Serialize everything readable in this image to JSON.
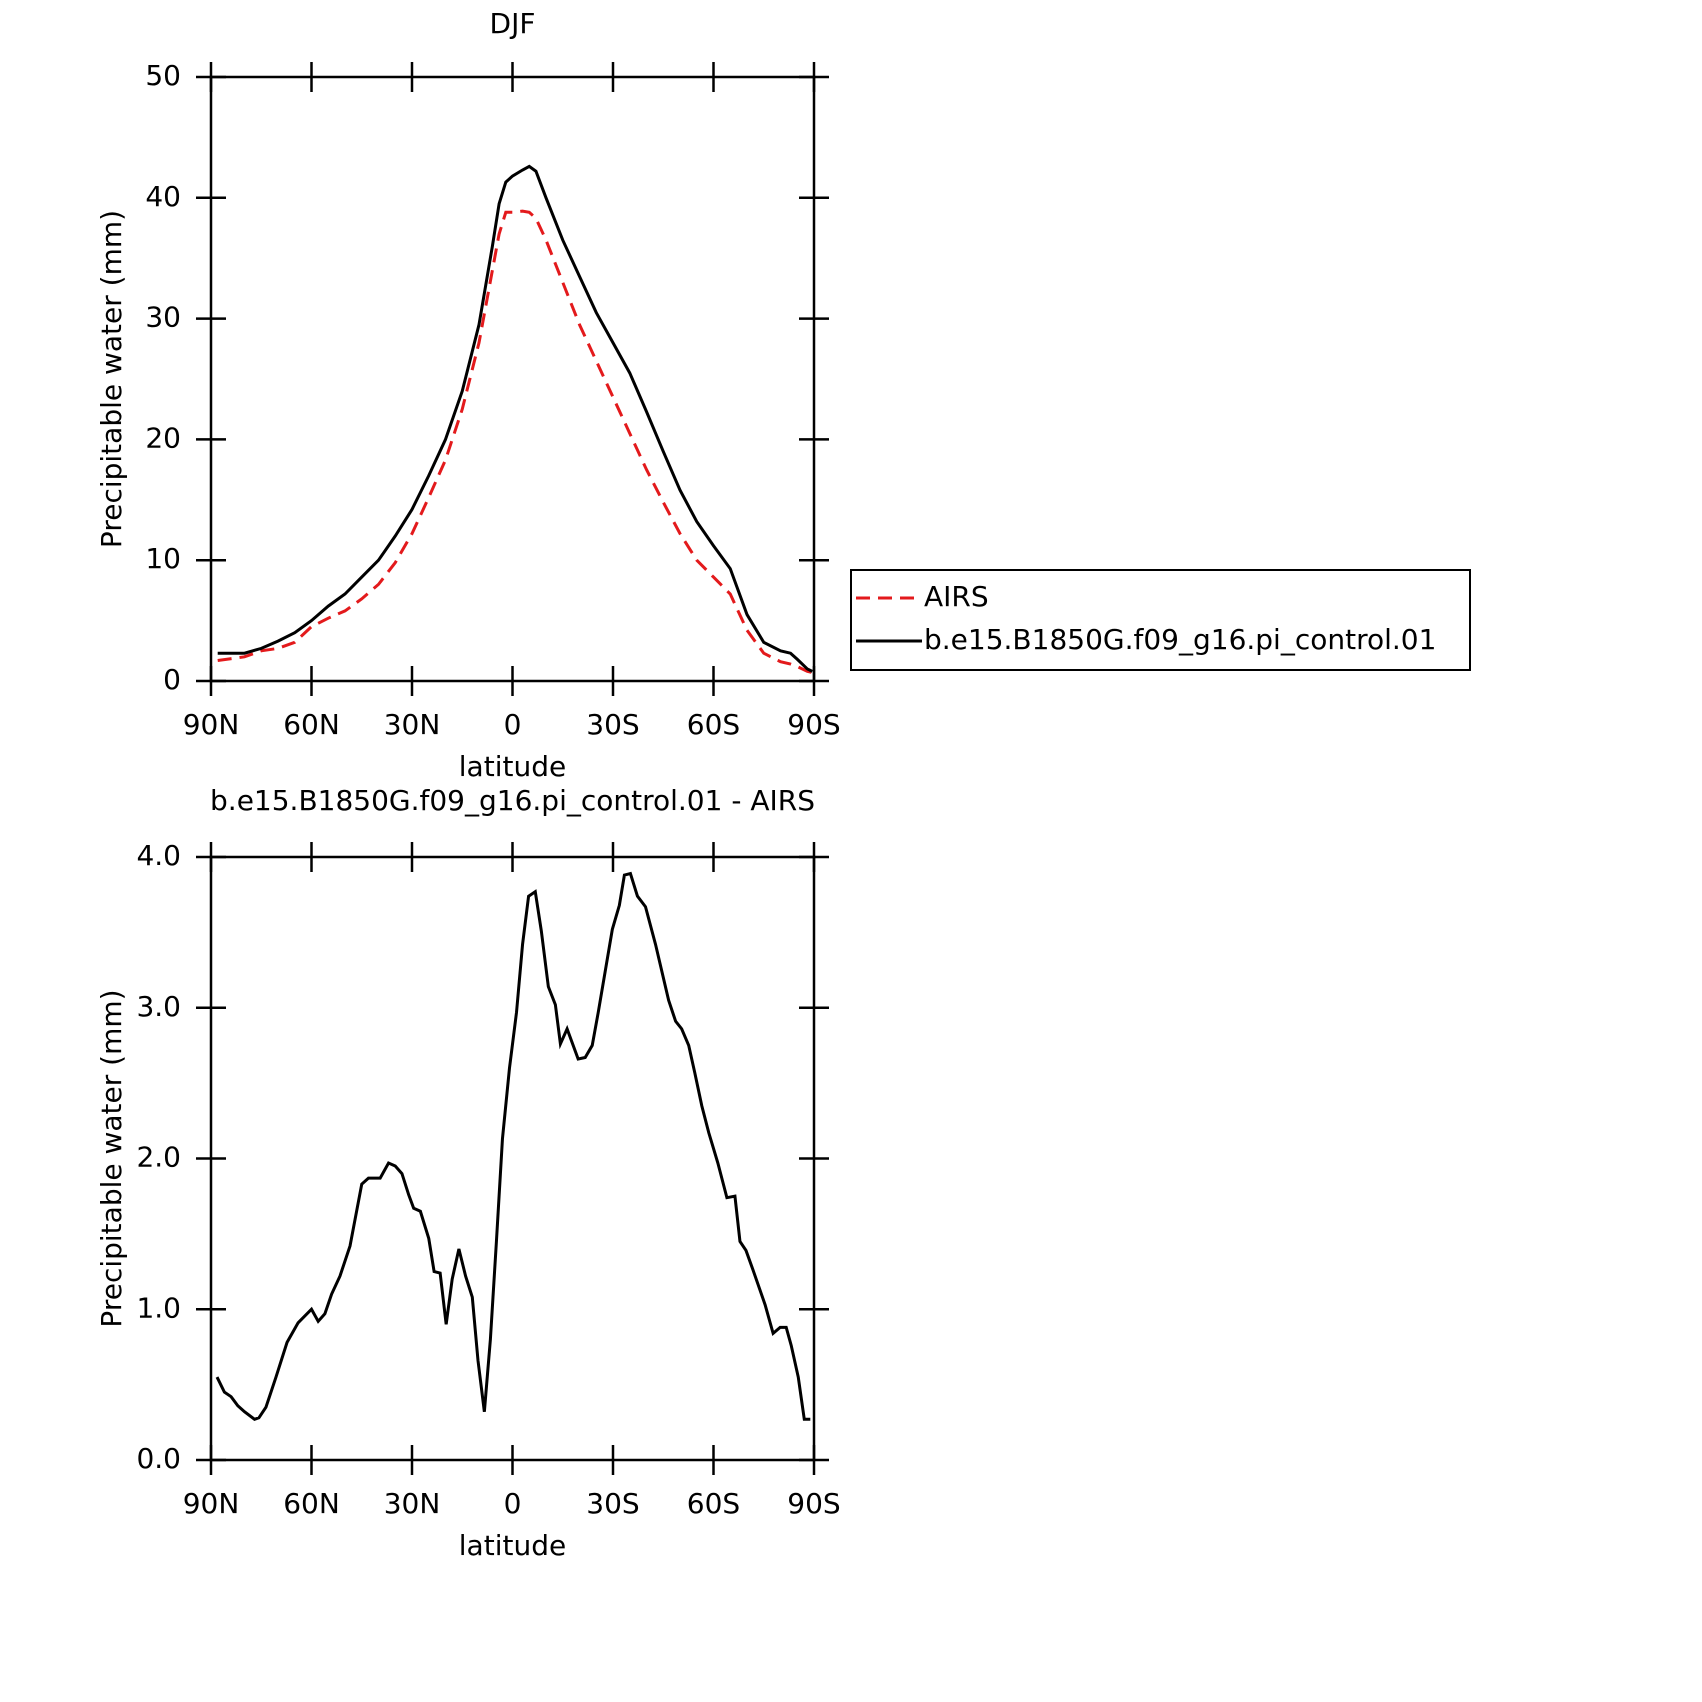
{
  "chart_data": [
    {
      "type": "line",
      "title": "DJF",
      "xlabel": "latitude",
      "ylabel": "Precipitable water (mm)",
      "x": [
        88,
        80,
        75,
        70,
        65,
        60,
        55,
        50,
        45,
        40,
        35,
        30,
        25,
        20,
        15,
        10,
        6,
        4,
        2,
        0,
        -3,
        -5,
        -7,
        -10,
        -15,
        -20,
        -25,
        -30,
        -35,
        -40,
        -45,
        -50,
        -55,
        -60,
        -65,
        -70,
        -75,
        -80,
        -83,
        -85,
        -88,
        -89.5
      ],
      "series": [
        {
          "name": "AIRS",
          "color": "#e31a1c",
          "dashed": true,
          "values": [
            1.7,
            2.0,
            2.5,
            2.7,
            3.2,
            4.5,
            5.2,
            5.8,
            6.8,
            8.0,
            9.8,
            12.2,
            15.2,
            18.3,
            22.5,
            28.0,
            34,
            37,
            38.8,
            38.8,
            38.9,
            38.8,
            38.3,
            36.5,
            33,
            29.5,
            26.5,
            23.5,
            20.5,
            17.5,
            14.8,
            12.2,
            10.0,
            8.6,
            7.2,
            4.2,
            2.3,
            1.6,
            1.4,
            1.2,
            0.8,
            0.7
          ]
        },
        {
          "name": "b.e15.B1850G.f09_g16.pi_control.01",
          "color": "#000000",
          "dashed": false,
          "values": [
            2.3,
            2.3,
            2.7,
            3.3,
            4.0,
            5.0,
            6.2,
            7.2,
            8.6,
            10.0,
            12.0,
            14.2,
            17.0,
            20.0,
            24.0,
            29.5,
            36,
            39.5,
            41.3,
            41.8,
            42.3,
            42.6,
            42.2,
            40,
            36.5,
            33.5,
            30.5,
            28,
            25.5,
            22.3,
            19,
            15.8,
            13.2,
            11.2,
            9.3,
            5.5,
            3.2,
            2.5,
            2.3,
            1.8,
            1.0,
            0.8
          ]
        }
      ],
      "xlim": [
        90,
        -90
      ],
      "xticks": [
        {
          "value": 90,
          "label": "90N"
        },
        {
          "value": 60,
          "label": "60N"
        },
        {
          "value": 30,
          "label": "30N"
        },
        0,
        {
          "value": -30,
          "label": "30S"
        },
        {
          "value": -60,
          "label": "60S"
        },
        {
          "value": -90,
          "label": "90S"
        }
      ],
      "ylim": [
        0,
        50
      ],
      "yticks": [
        0,
        10,
        20,
        30,
        40,
        50
      ],
      "legend": "right"
    },
    {
      "type": "line",
      "title": "b.e15.B1850G.f09_g16.pi_control.01 - AIRS",
      "xlabel": "latitude",
      "ylabel": "Precipitable water (mm)",
      "x": [
        88.2,
        86,
        84,
        82,
        80,
        77,
        75.7,
        73.6,
        70.6,
        67.3,
        64,
        60,
        58,
        56,
        54,
        51.5,
        48.5,
        45,
        43,
        39.5,
        37,
        35,
        33,
        31,
        29.5,
        27.5,
        25,
        23.4,
        21.6,
        19.8,
        18,
        16,
        14,
        12,
        10.3,
        8.4,
        6.6,
        4.8,
        3,
        0.9,
        -1.2,
        -3,
        -4.8,
        -6.8,
        -8.6,
        -10.7,
        -12.8,
        -14.3,
        -16.3,
        -19.6,
        -21.7,
        -23.8,
        -25.6,
        -29.8,
        -31.9,
        -33.4,
        -35.2,
        -37.3,
        -39.7,
        -42.7,
        -46.6,
        -48.7,
        -50.5,
        -52.6,
        -54.4,
        -56.5,
        -58.6,
        -61.3,
        -64,
        -66.4,
        -67.9,
        -69.7,
        -71.8,
        -75.4,
        -77.8,
        -79.9,
        -81.7,
        -83.2,
        -85.3,
        -87.1,
        -88.9
      ],
      "values": [
        0.55,
        0.45,
        0.42,
        0.36,
        0.32,
        0.27,
        0.28,
        0.35,
        0.55,
        0.78,
        0.91,
        1.0,
        0.92,
        0.97,
        1.1,
        1.22,
        1.42,
        1.83,
        1.87,
        1.87,
        1.97,
        1.95,
        1.9,
        1.76,
        1.67,
        1.65,
        1.47,
        1.25,
        1.24,
        0.9,
        1.2,
        1.4,
        1.22,
        1.08,
        0.66,
        0.32,
        0.8,
        1.45,
        2.13,
        2.6,
        2.97,
        3.42,
        3.74,
        3.77,
        3.51,
        3.14,
        3.02,
        2.76,
        2.86,
        2.66,
        2.67,
        2.75,
        2.97,
        3.52,
        3.68,
        3.88,
        3.89,
        3.74,
        3.67,
        3.42,
        3.05,
        2.91,
        2.86,
        2.75,
        2.57,
        2.35,
        2.17,
        1.97,
        1.74,
        1.75,
        1.45,
        1.39,
        1.26,
        1.03,
        0.84,
        0.88,
        0.88,
        0.76,
        0.55,
        0.27,
        0.27
      ],
      "color": "#000000",
      "xlim": [
        90,
        -90
      ],
      "xticks": [
        {
          "value": 90,
          "label": "90N"
        },
        {
          "value": 60,
          "label": "60N"
        },
        {
          "value": 30,
          "label": "30N"
        },
        0,
        {
          "value": -30,
          "label": "30S"
        },
        {
          "value": -60,
          "label": "60S"
        },
        {
          "value": -90,
          "label": "90S"
        }
      ],
      "ylim": [
        0,
        4
      ],
      "yticks": [
        {
          "value": 0,
          "label": "0.0"
        },
        {
          "value": 1,
          "label": "1.0"
        },
        {
          "value": 2,
          "label": "2.0"
        },
        {
          "value": 3,
          "label": "3.0"
        },
        {
          "value": 4,
          "label": "4.0"
        }
      ]
    }
  ]
}
